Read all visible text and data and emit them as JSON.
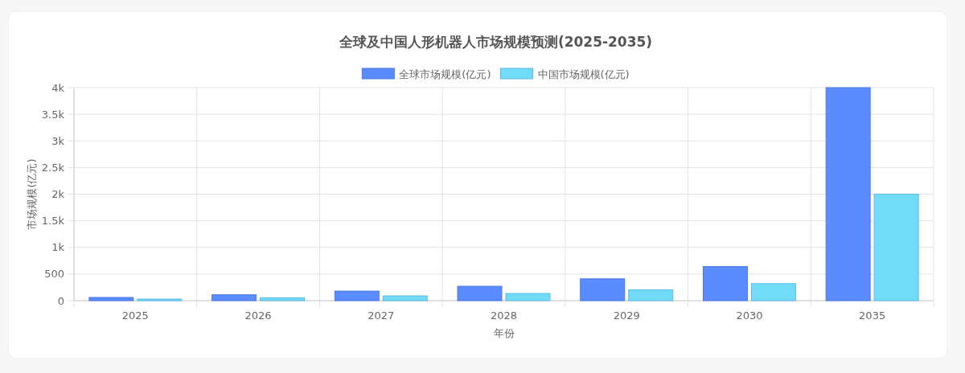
{
  "chart_data": {
    "type": "bar",
    "title": "全球及中国人形机器人市场规模预测(2025-2035)",
    "xlabel": "年份",
    "ylabel": "市场规模(亿元)",
    "categories": [
      "2025",
      "2026",
      "2027",
      "2028",
      "2029",
      "2030",
      "2035"
    ],
    "series": [
      {
        "name": "全球市场规模(亿元)",
        "color": "#5b8cff",
        "values": [
          60,
          110,
          180,
          270,
          410,
          640,
          4000
        ]
      },
      {
        "name": "中国市场规模(亿元)",
        "color": "#72dcf8",
        "values": [
          30,
          55,
          90,
          135,
          205,
          320,
          2000
        ]
      }
    ],
    "ylim": [
      0,
      4000
    ],
    "yticks": [
      0,
      500,
      {
        "value": 1000,
        "label": "1k"
      },
      {
        "value": 1500,
        "label": "1.5k"
      },
      {
        "value": 2000,
        "label": "2k"
      },
      {
        "value": 2500,
        "label": "2.5k"
      },
      {
        "value": 3000,
        "label": "3k"
      },
      {
        "value": 3500,
        "label": "3.5k"
      },
      {
        "value": 4000,
        "label": "4k"
      }
    ],
    "grid": true,
    "legend": "top"
  }
}
